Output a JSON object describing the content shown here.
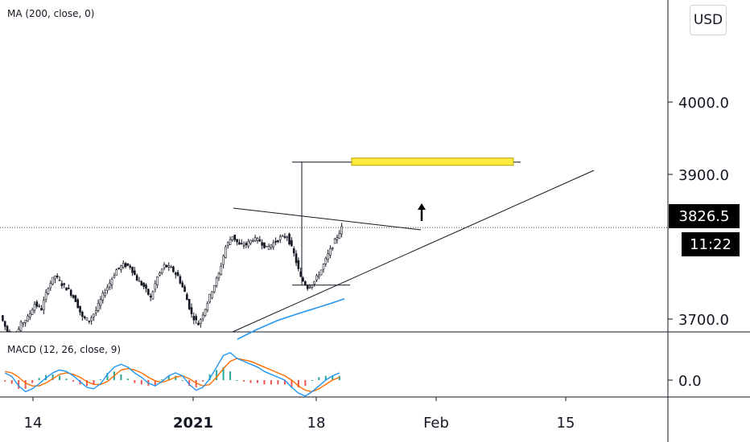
{
  "main_indicator": "MA (200, close, 0)",
  "macd_indicator": "MACD (12, 26, close, 9)",
  "currency": "USD",
  "last_price_label": "3826.5",
  "countdown_label": "11:22",
  "colors": {
    "candle": "#131722",
    "ma_line": "#2196f3",
    "macd_line": "#2196f3",
    "signal_line": "#ff6d00",
    "hist_up": "#26a69a",
    "hist_down": "#ef5350",
    "target_box": "#ffeb3b",
    "axis_line": "#131722"
  },
  "chart_data": [
    {
      "type": "candlestick",
      "title": "",
      "y_axis": {
        "ticks": [
          3700.0,
          3900.0,
          4000.0
        ],
        "tick_labels": [
          "3700.0",
          "3900.0",
          "4000.0"
        ],
        "range": [
          3690,
          4050
        ]
      },
      "x_axis": {
        "tick_labels": [
          "14",
          "2021",
          "18",
          "Feb",
          "15"
        ]
      },
      "last_price": 3826.5,
      "series": [
        {
          "name": "MA (200, close, 0)",
          "type": "line",
          "values": [
            3672,
            3685,
            3698,
            3708,
            3716,
            3722,
            3728
          ]
        }
      ],
      "annotations": {
        "target_level": 3917,
        "measured_move_bottom": 3747,
        "price_direction": "up"
      },
      "price_path": [
        3705,
        3682,
        3671,
        3693,
        3702,
        3721,
        3714,
        3745,
        3760,
        3748,
        3740,
        3726,
        3702,
        3698,
        3712,
        3733,
        3750,
        3768,
        3775,
        3773,
        3755,
        3745,
        3729,
        3758,
        3774,
        3770,
        3759,
        3737,
        3706,
        3693,
        3715,
        3740,
        3762,
        3800,
        3815,
        3802,
        3803,
        3811,
        3808,
        3798,
        3805,
        3812,
        3815,
        3790,
        3757,
        3744,
        3752,
        3768,
        3789,
        3808,
        3826
      ]
    },
    {
      "type": "line",
      "title": "MACD (12, 26, close, 9)",
      "y_axis": {
        "ticks": [
          0.0
        ],
        "tick_labels": [
          "0.0"
        ]
      },
      "series": [
        {
          "name": "MACD",
          "values": [
            10,
            5,
            -8,
            -16,
            -12,
            -5,
            3,
            10,
            14,
            12,
            6,
            -2,
            -10,
            -12,
            -5,
            8,
            18,
            22,
            18,
            10,
            4,
            -4,
            -8,
            -2,
            6,
            10,
            6,
            -6,
            -14,
            -10,
            2,
            18,
            34,
            38,
            30,
            26,
            22,
            18,
            12,
            8,
            4,
            0,
            -10,
            -18,
            -22,
            -16,
            -8,
            0,
            6,
            10,
            14
          ]
        },
        {
          "name": "Signal",
          "values": [
            12,
            10,
            4,
            -4,
            -8,
            -8,
            -4,
            2,
            8,
            10,
            8,
            4,
            -2,
            -6,
            -6,
            -2,
            6,
            14,
            16,
            14,
            10,
            4,
            -1,
            -3,
            0,
            4,
            6,
            2,
            -4,
            -8,
            -6,
            4,
            16,
            26,
            30,
            28,
            26,
            22,
            18,
            14,
            10,
            6,
            0,
            -8,
            -14,
            -16,
            -12,
            -6,
            0,
            4,
            8
          ]
        },
        {
          "name": "Histogram",
          "type": "bar",
          "values": [
            -2,
            -5,
            -12,
            -12,
            -4,
            3,
            7,
            8,
            6,
            2,
            -2,
            -6,
            -8,
            -6,
            1,
            10,
            12,
            8,
            2,
            -4,
            -6,
            -8,
            -7,
            1,
            6,
            6,
            0,
            -8,
            -10,
            -2,
            8,
            14,
            18,
            12,
            0,
            -2,
            -4,
            -4,
            -6,
            -6,
            -6,
            -6,
            -10,
            -10,
            -8,
            0,
            4,
            6,
            6,
            6,
            6
          ]
        }
      ]
    }
  ]
}
